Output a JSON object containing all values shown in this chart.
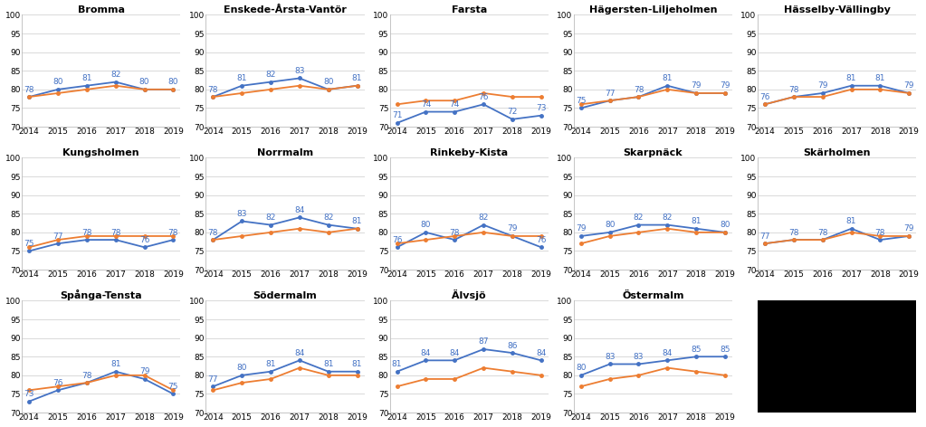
{
  "years": [
    2014,
    2015,
    2016,
    2017,
    2018,
    2019
  ],
  "districts": [
    {
      "name": "Bromma",
      "blue": [
        78,
        80,
        81,
        82,
        80,
        80
      ],
      "orange": [
        78,
        79,
        80,
        81,
        80,
        80
      ]
    },
    {
      "name": "Enskede-Årsta-Vantör",
      "blue": [
        78,
        81,
        82,
        83,
        80,
        81
      ],
      "orange": [
        78,
        79,
        80,
        81,
        80,
        81
      ]
    },
    {
      "name": "Farsta",
      "blue": [
        71,
        74,
        74,
        76,
        72,
        73
      ],
      "orange": [
        76,
        77,
        77,
        79,
        78,
        78
      ]
    },
    {
      "name": "Hägersten-Liljeholmen",
      "blue": [
        75,
        77,
        78,
        81,
        79,
        79
      ],
      "orange": [
        76,
        77,
        78,
        80,
        79,
        79
      ]
    },
    {
      "name": "Hässelby-Vällingby",
      "blue": [
        76,
        78,
        79,
        81,
        81,
        79
      ],
      "orange": [
        76,
        78,
        78,
        80,
        80,
        79
      ]
    },
    {
      "name": "Kungsholmen",
      "blue": [
        75,
        77,
        78,
        78,
        76,
        78
      ],
      "orange": [
        76,
        78,
        79,
        79,
        79,
        79
      ]
    },
    {
      "name": "Norrmalm",
      "blue": [
        78,
        83,
        82,
        84,
        82,
        81
      ],
      "orange": [
        78,
        79,
        80,
        81,
        80,
        81
      ]
    },
    {
      "name": "Rinkeby-Kista",
      "blue": [
        76,
        80,
        78,
        82,
        79,
        76
      ],
      "orange": [
        77,
        78,
        79,
        80,
        79,
        79
      ]
    },
    {
      "name": "Skarpnäck",
      "blue": [
        79,
        80,
        82,
        82,
        81,
        80
      ],
      "orange": [
        77,
        79,
        80,
        81,
        80,
        80
      ]
    },
    {
      "name": "Skärholmen",
      "blue": [
        77,
        78,
        78,
        81,
        78,
        79
      ],
      "orange": [
        77,
        78,
        78,
        80,
        79,
        79
      ]
    },
    {
      "name": "Spånga-Tensta",
      "blue": [
        73,
        76,
        78,
        81,
        79,
        75
      ],
      "orange": [
        76,
        77,
        78,
        80,
        80,
        76
      ]
    },
    {
      "name": "Södermalm",
      "blue": [
        77,
        80,
        81,
        84,
        81,
        81
      ],
      "orange": [
        76,
        78,
        79,
        82,
        80,
        80
      ]
    },
    {
      "name": "Älvsjö",
      "blue": [
        81,
        84,
        84,
        87,
        86,
        84
      ],
      "orange": [
        77,
        79,
        79,
        82,
        81,
        80
      ]
    },
    {
      "name": "Östermalm",
      "blue": [
        80,
        83,
        83,
        84,
        85,
        85
      ],
      "orange": [
        77,
        79,
        80,
        82,
        81,
        80
      ]
    }
  ],
  "ylim": [
    70,
    100
  ],
  "yticks": [
    70,
    75,
    80,
    85,
    90,
    95,
    100
  ],
  "blue_color": "#4472C4",
  "orange_color": "#ED7D31",
  "title_fontsize": 8,
  "tick_fontsize": 6.5,
  "label_fontsize": 6.5,
  "grid_color": "#D9D9D9",
  "background_color": "#FFFFFF"
}
